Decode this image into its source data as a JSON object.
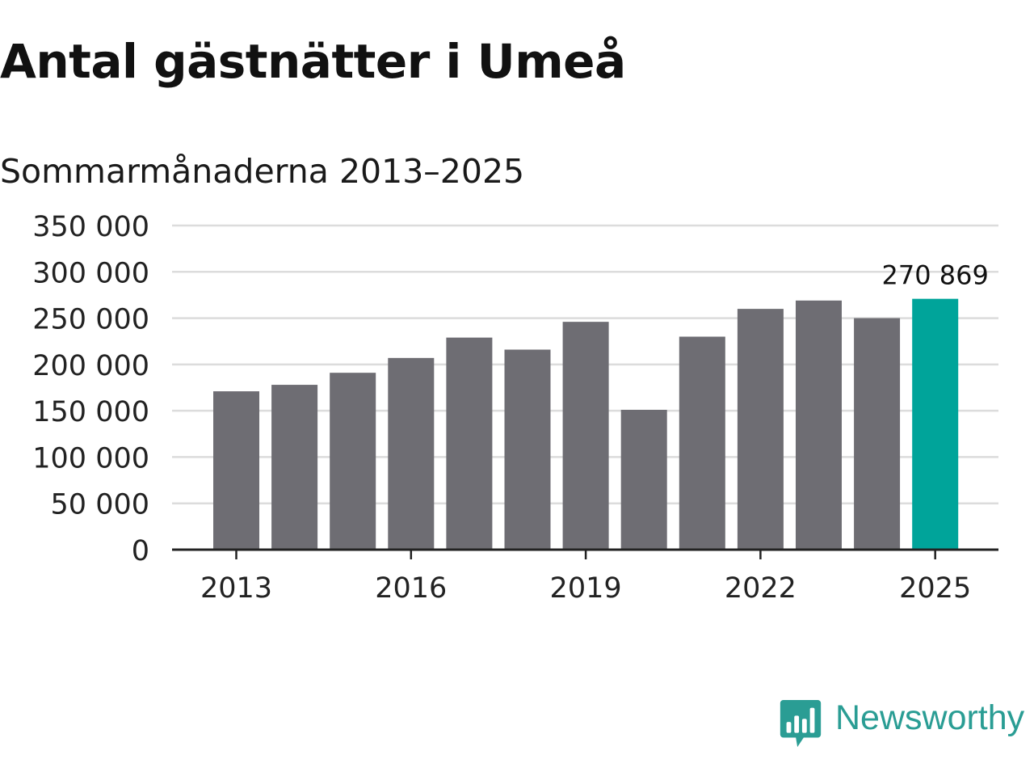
{
  "chart_data": {
    "type": "bar",
    "title": "Antal gästnätter i Umeå",
    "subtitle": "Sommarmånaderna 2013–2025",
    "categories": [
      "2013",
      "2014",
      "2015",
      "2016",
      "2017",
      "2018",
      "2019",
      "2020",
      "2021",
      "2022",
      "2023",
      "2024",
      "2025"
    ],
    "values": [
      171000,
      178000,
      191000,
      207000,
      229000,
      216000,
      246000,
      151000,
      230000,
      260000,
      269000,
      250000,
      270869
    ],
    "ylim": [
      0,
      350000
    ],
    "yticks": [
      {
        "value": 350000,
        "label": "350 000"
      },
      {
        "value": 300000,
        "label": "300 000"
      },
      {
        "value": 250000,
        "label": "250 000"
      },
      {
        "value": 200000,
        "label": "200 000"
      },
      {
        "value": 150000,
        "label": "150 000"
      },
      {
        "value": 100000,
        "label": "100 000"
      },
      {
        "value": 50000,
        "label": "50 000"
      },
      {
        "value": 0,
        "label": "0"
      }
    ],
    "xticks": [
      "2013",
      "2016",
      "2019",
      "2022",
      "2025"
    ],
    "highlight": {
      "category": "2025",
      "label": "270 869"
    },
    "grid": true,
    "colors": {
      "bar": "#6e6d73",
      "highlight": "#00a49a",
      "grid": "#dcdcdc",
      "axis": "#222222"
    }
  },
  "brand": {
    "name": "Newsworthy",
    "color": "#2a9d94"
  }
}
